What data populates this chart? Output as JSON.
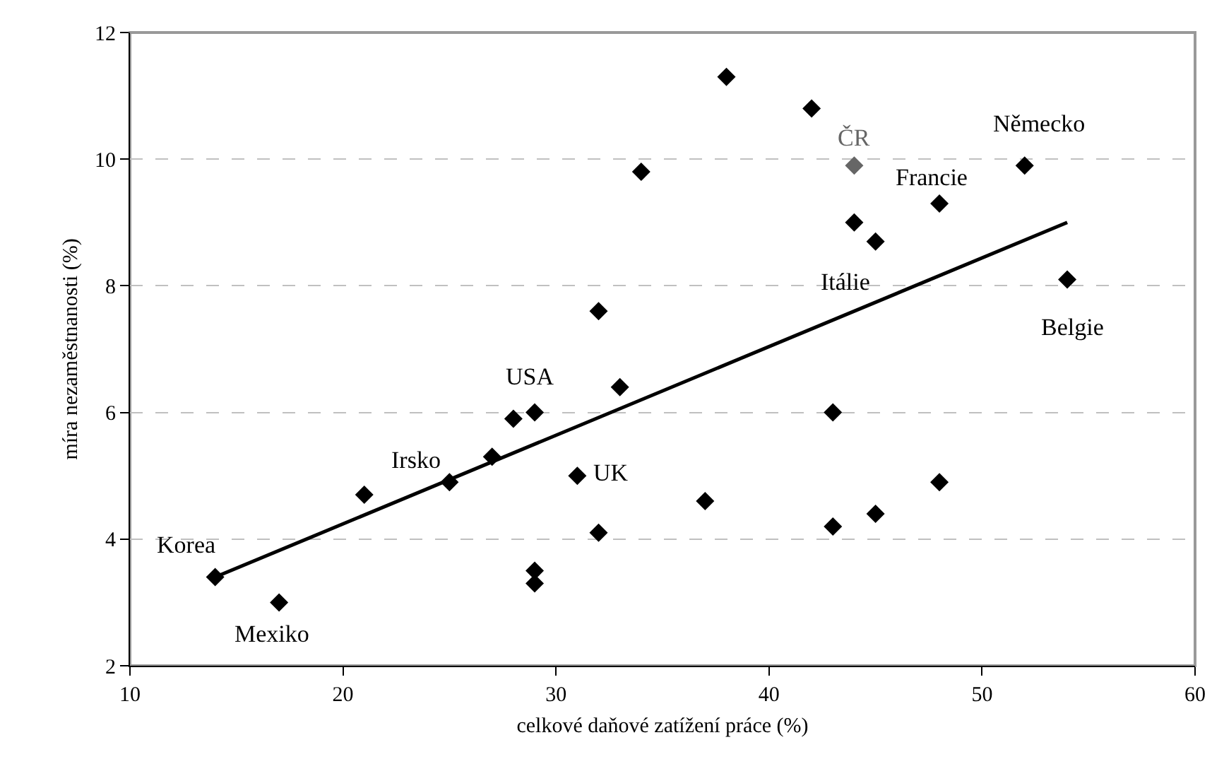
{
  "chart_data": {
    "type": "scatter",
    "xlabel": "celkové daňové zatížení práce (%)",
    "ylabel": "míra nezaměstnanosti (%)",
    "xlim": [
      10,
      60
    ],
    "xticks": [
      10,
      20,
      30,
      40,
      50,
      60
    ],
    "ylim": [
      2,
      12
    ],
    "yticks": [
      2,
      4,
      6,
      8,
      10,
      12
    ],
    "grid": "y",
    "series": [
      {
        "marker": "diamond",
        "color": "#000000",
        "x": [
          14,
          17,
          21,
          25,
          27,
          28,
          29,
          29,
          29,
          31,
          32,
          32,
          33,
          34,
          37,
          38,
          42,
          43,
          43,
          44,
          44,
          45,
          45,
          48,
          48,
          52,
          54
        ],
        "values": [
          3.4,
          3.0,
          4.7,
          4.9,
          5.3,
          5.9,
          6.0,
          3.5,
          3.3,
          5.0,
          4.1,
          7.6,
          6.4,
          9.8,
          4.6,
          11.3,
          10.8,
          6.0,
          4.2,
          9.9,
          9.0,
          8.7,
          4.4,
          9.3,
          4.9,
          9.9,
          8.1
        ],
        "colors": [
          "#000000",
          "#000000",
          "#000000",
          "#000000",
          "#000000",
          "#000000",
          "#000000",
          "#000000",
          "#000000",
          "#000000",
          "#000000",
          "#000000",
          "#000000",
          "#000000",
          "#000000",
          "#000000",
          "#000000",
          "#000000",
          "#000000",
          "#666666",
          "#000000",
          "#000000",
          "#000000",
          "#000000",
          "#000000",
          "#000000",
          "#000000"
        ]
      },
      {
        "type": "line",
        "marker": "none",
        "line_style": "solid",
        "color": "#000000",
        "x": [
          14,
          54
        ],
        "values": [
          3.4,
          9.0
        ]
      }
    ],
    "annotations": [
      {
        "text": "Korea",
        "x": 14,
        "y": 3.4
      },
      {
        "text": "Mexiko",
        "x": 17,
        "y": 3.0
      },
      {
        "text": "Irsko",
        "x": 25,
        "y": 4.9
      },
      {
        "text": "USA",
        "x": 29,
        "y": 6.0
      },
      {
        "text": "UK",
        "x": 31,
        "y": 5.0
      },
      {
        "text": "ČR",
        "x": 44,
        "y": 9.9
      },
      {
        "text": "Francie",
        "x": 48,
        "y": 9.3
      },
      {
        "text": "Německo",
        "x": 52,
        "y": 9.9
      },
      {
        "text": "Itálie",
        "x": 45,
        "y": 8.7
      },
      {
        "text": "Belgie",
        "x": 54,
        "y": 8.1
      }
    ]
  }
}
